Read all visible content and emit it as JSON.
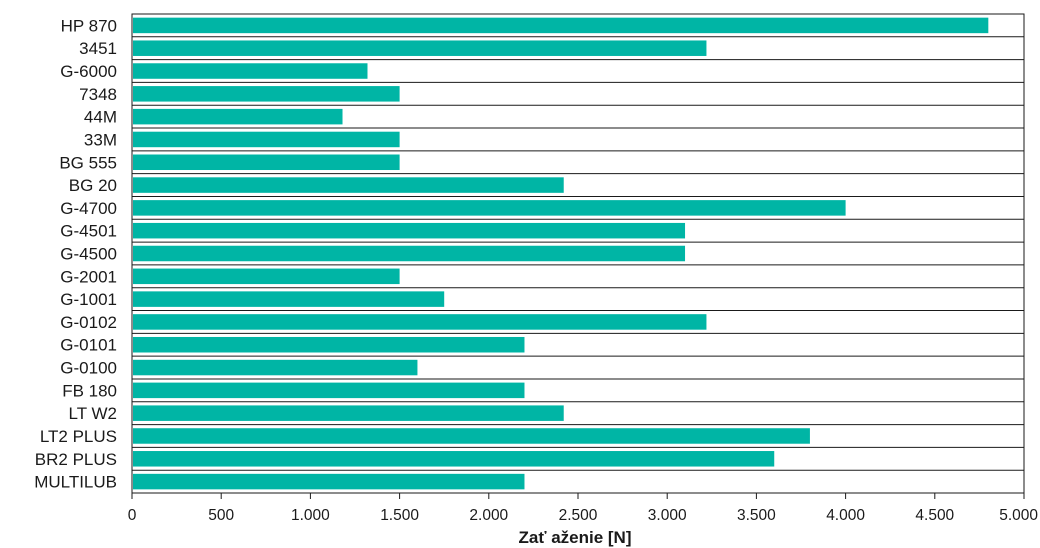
{
  "chart_data": {
    "type": "bar",
    "orientation": "horizontal",
    "categories": [
      "HP 870",
      "3451",
      "G-6000",
      "7348",
      "44M",
      "33M",
      "BG 555",
      "BG 20",
      "G-4700",
      "G-4501",
      "G-4500",
      "G-2001",
      "G-1001",
      "G-0102",
      "G-0101",
      "G-0100",
      "FB 180",
      "LT W2",
      "LT2 PLUS",
      "BR2 PLUS",
      "MULTILUB"
    ],
    "values": [
      4800,
      3220,
      1320,
      1500,
      1180,
      1500,
      1500,
      2420,
      4000,
      3100,
      3100,
      1500,
      1750,
      3220,
      2200,
      1600,
      2200,
      2420,
      3800,
      3600,
      2200
    ],
    "xlabel": "Zať aženie [N]",
    "xlim": [
      0,
      5000
    ],
    "xticks": [
      0,
      500,
      1000,
      1500,
      2000,
      2500,
      3000,
      3500,
      4000,
      4500,
      5000
    ],
    "xtick_labels": [
      "0",
      "500",
      "1.000",
      "1.500",
      "2.000",
      "2.500",
      "3.000",
      "3.500",
      "4.000",
      "4.500",
      "5.000"
    ],
    "bar_color": "#00b5a5",
    "grid": "horizontal row separators"
  }
}
